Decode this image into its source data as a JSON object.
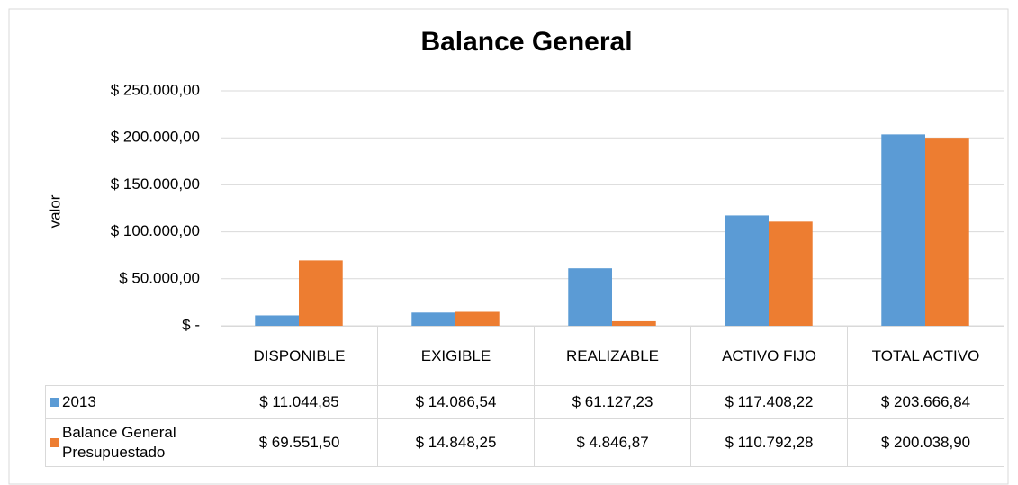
{
  "chart_data": {
    "type": "bar",
    "title": "Balance General",
    "y_label": "valor",
    "categories": [
      "DISPONIBLE",
      "EXIGIBLE",
      "REALIZABLE",
      "ACTIVO FIJO",
      "TOTAL ACTIVO"
    ],
    "series": [
      {
        "name": "2013",
        "color": "#5b9bd5",
        "values": [
          11044.85,
          14086.54,
          61127.23,
          117408.22,
          203666.84
        ],
        "value_labels": [
          "$ 11.044,85",
          "$ 14.086,54",
          "$ 61.127,23",
          "$ 117.408,22",
          "$ 203.666,84"
        ]
      },
      {
        "name": "Balance General Presupuestado",
        "color": "#ed7d31",
        "values": [
          69551.5,
          14848.25,
          4846.87,
          110792.28,
          200038.9
        ],
        "value_labels": [
          "$ 69.551,50",
          "$ 14.848,25",
          "$ 4.846,87",
          "$ 110.792,28",
          "$ 200.038,90"
        ]
      }
    ],
    "ylim": [
      0,
      250000
    ],
    "yticks": [
      {
        "value": 0,
        "label": "$ -"
      },
      {
        "value": 50000,
        "label": "$ 50.000,00"
      },
      {
        "value": 100000,
        "label": "$ 100.000,00"
      },
      {
        "value": 150000,
        "label": "$ 150.000,00"
      },
      {
        "value": 200000,
        "label": "$ 200.000,00"
      },
      {
        "value": 250000,
        "label": "$ 250.000,00"
      }
    ],
    "grid": true,
    "data_table": true
  }
}
